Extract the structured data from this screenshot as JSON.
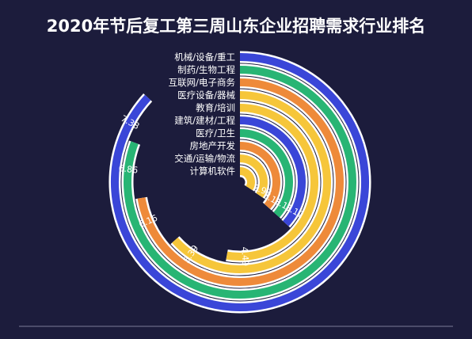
{
  "chart_data": {
    "type": "radial-bar",
    "title": "2020年节后复工第三周山东企业招聘需求行业排名",
    "categories": [
      "机械/设备/重工",
      "制药/生物工程",
      "互联网/电子商务",
      "医疗设备/器械",
      "教育/培训",
      "建筑/建材/工程",
      "医疗/卫生",
      "房地产开发",
      "交通/运输/物流",
      "计算机软件"
    ],
    "values": [
      7.38,
      6.86,
      6.16,
      5.39,
      4.49,
      3.12,
      3.11,
      3.11,
      2.93,
      2.9
    ],
    "value_labels": [
      "7.38",
      "6.86",
      "6.16",
      "5.39",
      "4.49",
      "3.12",
      "3.11",
      "3.11",
      "2.93",
      ""
    ],
    "colors": [
      "#3a46d8",
      "#28b574",
      "#ee8a3a",
      "#f6c63a",
      "#f6c63a",
      "#3a46d8",
      "#28b574",
      "#ee8a3a",
      "#f6c63a",
      "#f6c63a"
    ],
    "track_color": "#ffffff",
    "grid": false,
    "legend": "none"
  }
}
